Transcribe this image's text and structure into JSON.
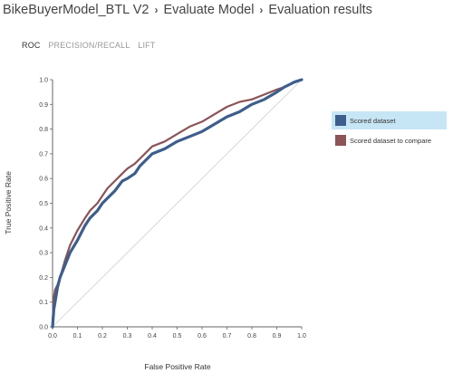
{
  "breadcrumb": {
    "items": [
      "BikeBuyerModel_BTL V2",
      "Evaluate Model",
      "Evaluation results"
    ],
    "separator": "›"
  },
  "tabs": [
    {
      "label": "ROC",
      "active": true
    },
    {
      "label": "PRECISION/RECALL",
      "active": false
    },
    {
      "label": "LIFT",
      "active": false
    }
  ],
  "legend": {
    "items": [
      {
        "label": "Scored dataset",
        "color": "#3d5e8c",
        "selected": true
      },
      {
        "label": "Scored dataset to compare",
        "color": "#8b5457",
        "selected": false
      }
    ]
  },
  "chart_data": {
    "type": "line",
    "xlabel": "False Positive Rate",
    "ylabel": "True Positive Rate",
    "xlim": [
      0,
      1
    ],
    "ylim": [
      0,
      1
    ],
    "x_ticks": [
      "0.0",
      "0.1",
      "0.2",
      "0.3",
      "0.4",
      "0.5",
      "0.6",
      "0.7",
      "0.8",
      "0.9",
      "1.0"
    ],
    "y_ticks": [
      "0.0",
      "0.1",
      "0.2",
      "0.3",
      "0.4",
      "0.5",
      "0.6",
      "0.7",
      "0.8",
      "0.9",
      "1.0"
    ],
    "grid": false,
    "diagonal_reference": true,
    "series": [
      {
        "name": "Scored dataset",
        "color": "#3d5e8c",
        "x": [
          0,
          0.005,
          0.01,
          0.02,
          0.03,
          0.05,
          0.07,
          0.1,
          0.13,
          0.15,
          0.18,
          0.2,
          0.22,
          0.25,
          0.28,
          0.3,
          0.33,
          0.35,
          0.4,
          0.45,
          0.5,
          0.55,
          0.6,
          0.65,
          0.7,
          0.75,
          0.8,
          0.85,
          0.9,
          0.93,
          0.95,
          0.97,
          1.0
        ],
        "y": [
          0,
          0.07,
          0.1,
          0.16,
          0.2,
          0.25,
          0.3,
          0.35,
          0.41,
          0.44,
          0.47,
          0.5,
          0.52,
          0.55,
          0.59,
          0.6,
          0.62,
          0.65,
          0.7,
          0.72,
          0.75,
          0.77,
          0.79,
          0.82,
          0.85,
          0.87,
          0.9,
          0.92,
          0.95,
          0.97,
          0.98,
          0.99,
          1.0
        ]
      },
      {
        "name": "Scored dataset to compare",
        "color": "#8b5457",
        "x": [
          0,
          0.005,
          0.01,
          0.02,
          0.03,
          0.05,
          0.07,
          0.1,
          0.13,
          0.15,
          0.18,
          0.2,
          0.22,
          0.25,
          0.28,
          0.3,
          0.33,
          0.35,
          0.4,
          0.45,
          0.5,
          0.55,
          0.6,
          0.65,
          0.7,
          0.75,
          0.8,
          0.85,
          0.9,
          0.93,
          0.95,
          0.97,
          1.0
        ],
        "y": [
          0,
          0.12,
          0.15,
          0.17,
          0.2,
          0.27,
          0.33,
          0.39,
          0.44,
          0.47,
          0.5,
          0.53,
          0.56,
          0.59,
          0.62,
          0.64,
          0.66,
          0.68,
          0.73,
          0.75,
          0.78,
          0.81,
          0.83,
          0.86,
          0.89,
          0.91,
          0.92,
          0.94,
          0.96,
          0.97,
          0.98,
          0.99,
          1.0
        ]
      }
    ]
  }
}
